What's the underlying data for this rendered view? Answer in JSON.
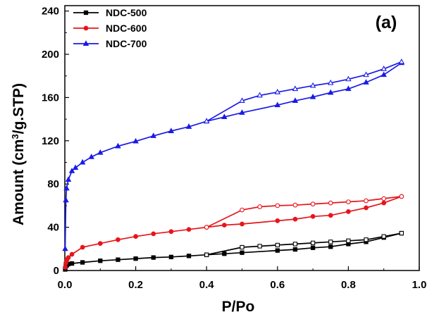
{
  "chart_data": {
    "type": "line",
    "title": "",
    "panel_label": "(a)",
    "xlabel": "P/Po",
    "ylabel_prefix": "Amount (cm",
    "ylabel_sup": "3",
    "ylabel_suffix": "/g.STP)",
    "xlim": [
      0.0,
      1.0
    ],
    "ylim": [
      0,
      245
    ],
    "xticks": [
      "0.0",
      "0.2",
      "0.4",
      "0.6",
      "0.8",
      "1.0"
    ],
    "yticks": [
      "0",
      "40",
      "80",
      "120",
      "160",
      "200",
      "240"
    ],
    "grid": false,
    "legend_position": "top-left",
    "series": [
      {
        "name": "NDC-500",
        "color": "#000000",
        "marker": "square",
        "adsorption": [
          [
            0.001,
            1
          ],
          [
            0.003,
            4
          ],
          [
            0.006,
            5
          ],
          [
            0.01,
            6
          ],
          [
            0.02,
            6.5
          ],
          [
            0.05,
            7.5
          ],
          [
            0.1,
            9
          ],
          [
            0.15,
            10
          ],
          [
            0.2,
            11
          ],
          [
            0.25,
            12
          ],
          [
            0.3,
            12.5
          ],
          [
            0.35,
            13.5
          ],
          [
            0.4,
            14.5
          ],
          [
            0.45,
            15.5
          ],
          [
            0.5,
            16.5
          ],
          [
            0.6,
            18.5
          ],
          [
            0.65,
            19.5
          ],
          [
            0.7,
            21
          ],
          [
            0.75,
            22
          ],
          [
            0.8,
            24.5
          ],
          [
            0.85,
            26.5
          ],
          [
            0.9,
            30.5
          ],
          [
            0.95,
            34.5
          ]
        ],
        "desorption": [
          [
            0.95,
            34.5
          ],
          [
            0.9,
            31.5
          ],
          [
            0.85,
            28.5
          ],
          [
            0.8,
            27.5
          ],
          [
            0.75,
            26.5
          ],
          [
            0.7,
            25.5
          ],
          [
            0.65,
            24.5
          ],
          [
            0.6,
            23.5
          ],
          [
            0.55,
            22.5
          ],
          [
            0.5,
            21.5
          ],
          [
            0.4,
            14.5
          ]
        ]
      },
      {
        "name": "NDC-600",
        "color": "#e8141b",
        "marker": "circle",
        "adsorption": [
          [
            0.001,
            3
          ],
          [
            0.003,
            7
          ],
          [
            0.006,
            10
          ],
          [
            0.01,
            12
          ],
          [
            0.02,
            15
          ],
          [
            0.05,
            21.5
          ],
          [
            0.1,
            25
          ],
          [
            0.15,
            28.5
          ],
          [
            0.2,
            31.5
          ],
          [
            0.25,
            34
          ],
          [
            0.3,
            36
          ],
          [
            0.35,
            38
          ],
          [
            0.4,
            40
          ],
          [
            0.45,
            42
          ],
          [
            0.5,
            43
          ],
          [
            0.6,
            46
          ],
          [
            0.65,
            47.5
          ],
          [
            0.7,
            50
          ],
          [
            0.75,
            51
          ],
          [
            0.8,
            54.5
          ],
          [
            0.85,
            58
          ],
          [
            0.9,
            62.5
          ],
          [
            0.95,
            68.5
          ]
        ],
        "desorption": [
          [
            0.95,
            68.5
          ],
          [
            0.9,
            66.5
          ],
          [
            0.85,
            64.5
          ],
          [
            0.8,
            63.5
          ],
          [
            0.75,
            62.5
          ],
          [
            0.7,
            61.5
          ],
          [
            0.65,
            60.5
          ],
          [
            0.6,
            60
          ],
          [
            0.55,
            59
          ],
          [
            0.5,
            56
          ],
          [
            0.4,
            40
          ]
        ]
      },
      {
        "name": "NDC-700",
        "color": "#1a1ae6",
        "marker": "triangle",
        "adsorption": [
          [
            0.001,
            20
          ],
          [
            0.003,
            65
          ],
          [
            0.005,
            76
          ],
          [
            0.01,
            84
          ],
          [
            0.02,
            92
          ],
          [
            0.03,
            95
          ],
          [
            0.05,
            100
          ],
          [
            0.075,
            105
          ],
          [
            0.1,
            109
          ],
          [
            0.15,
            115
          ],
          [
            0.2,
            119.5
          ],
          [
            0.25,
            124.5
          ],
          [
            0.3,
            129
          ],
          [
            0.35,
            133
          ],
          [
            0.4,
            138
          ],
          [
            0.45,
            142
          ],
          [
            0.5,
            146
          ],
          [
            0.6,
            153
          ],
          [
            0.65,
            157
          ],
          [
            0.7,
            160.5
          ],
          [
            0.75,
            164.5
          ],
          [
            0.8,
            168
          ],
          [
            0.85,
            174
          ],
          [
            0.9,
            181
          ],
          [
            0.95,
            192
          ]
        ],
        "desorption": [
          [
            0.95,
            193
          ],
          [
            0.9,
            186.5
          ],
          [
            0.85,
            181
          ],
          [
            0.8,
            177
          ],
          [
            0.75,
            173.5
          ],
          [
            0.7,
            171
          ],
          [
            0.65,
            168
          ],
          [
            0.6,
            165
          ],
          [
            0.55,
            162
          ],
          [
            0.5,
            157
          ],
          [
            0.4,
            138
          ]
        ]
      }
    ]
  }
}
